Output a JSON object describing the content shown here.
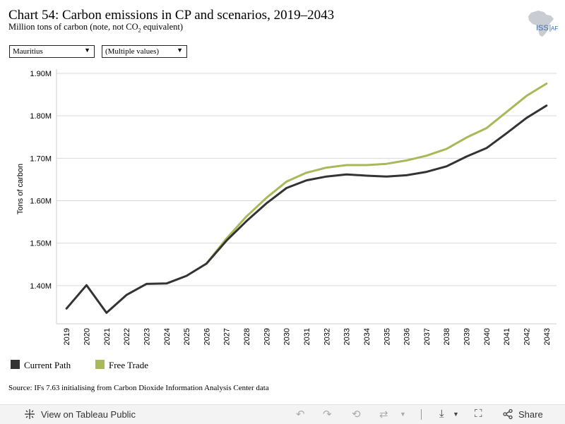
{
  "header": {
    "title": "Chart 54: Carbon emissions in CP and scenarios, 2019–2043",
    "subtitle_pre": "Million tons of carbon (note, not CO",
    "subtitle_sub": "2",
    "subtitle_post": " equivalent)",
    "logo_text_left": "ISS",
    "logo_text_right": "AF"
  },
  "filters": {
    "country": "Mauritius",
    "scenario": "(Multiple values)"
  },
  "chart_data": {
    "type": "line",
    "title": "Chart 54: Carbon emissions in CP and scenarios, 2019–2043",
    "ylabel": "Tons of carbon",
    "xlabel": "",
    "ylim": [
      1.31,
      1.91
    ],
    "yticks": [
      1.4,
      1.5,
      1.6,
      1.7,
      1.8,
      1.9
    ],
    "ytick_labels": [
      "1.40M",
      "1.50M",
      "1.60M",
      "1.70M",
      "1.80M",
      "1.90M"
    ],
    "grid": true,
    "categories": [
      "2019",
      "2020",
      "2021",
      "2022",
      "2023",
      "2024",
      "2025",
      "2026",
      "2027",
      "2028",
      "2029",
      "2030",
      "2031",
      "2032",
      "2033",
      "2034",
      "2035",
      "2036",
      "2037",
      "2038",
      "2039",
      "2040",
      "2041",
      "2042",
      "2043"
    ],
    "series": [
      {
        "name": "Current Path",
        "color": "#333333",
        "values": [
          1.346,
          1.401,
          1.336,
          1.378,
          1.404,
          1.405,
          1.423,
          1.452,
          1.506,
          1.552,
          1.594,
          1.63,
          1.648,
          1.657,
          1.662,
          1.659,
          1.657,
          1.66,
          1.668,
          1.681,
          1.704,
          1.724,
          1.759,
          1.795,
          1.824
        ]
      },
      {
        "name": "Free Trade",
        "color": "#a8b95a",
        "values": [
          null,
          null,
          null,
          null,
          null,
          null,
          null,
          1.452,
          1.511,
          1.563,
          1.607,
          1.645,
          1.666,
          1.678,
          1.684,
          1.684,
          1.687,
          1.695,
          1.706,
          1.722,
          1.749,
          1.771,
          1.809,
          1.847,
          1.876
        ]
      }
    ]
  },
  "legend": {
    "items": [
      {
        "label": "Current Path",
        "color": "#333333"
      },
      {
        "label": "Free Trade",
        "color": "#a8b95a"
      }
    ]
  },
  "source": "Source: IFs 7.63 initialising from Carbon Dioxide Information Analysis Center data",
  "footer": {
    "view_label": "View on Tableau Public",
    "share_label": "Share"
  }
}
